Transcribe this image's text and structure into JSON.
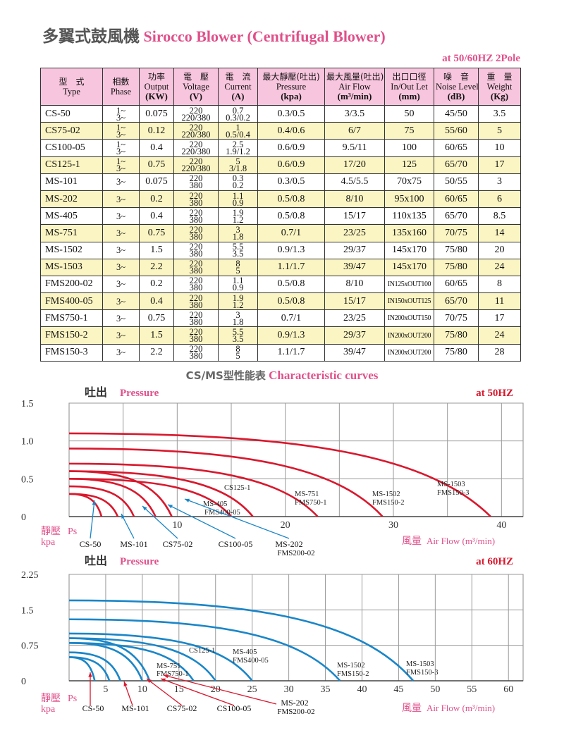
{
  "title": {
    "zh": "多翼式鼓風機",
    "en": "Sirocco Blower (Centrifugal Blower)"
  },
  "subtitle": "at  50/60HZ 2Pole",
  "table": {
    "headers": [
      {
        "zh": "型　式",
        "en": "Type",
        "unit": ""
      },
      {
        "zh": "相數",
        "en": "Phase",
        "unit": ""
      },
      {
        "zh": "功率",
        "en": "Output",
        "unit": "(KW)"
      },
      {
        "zh": "電　壓",
        "en": "Voltage",
        "unit": "(V)"
      },
      {
        "zh": "電　流",
        "en": "Current",
        "unit": "(A)"
      },
      {
        "zh": "最大靜壓(吐出)",
        "en": "Pressure",
        "unit": "(kpa)"
      },
      {
        "zh": "最大風量(吐出)",
        "en": "Air Flow",
        "unit": "(m³/min)"
      },
      {
        "zh": "出口口徑",
        "en": "In/Out Let",
        "unit": "(mm)"
      },
      {
        "zh": "噪　音",
        "en": "Noise Level",
        "unit": "(dB)"
      },
      {
        "zh": "重　量",
        "en": "Weight",
        "unit": "(Kg)"
      }
    ],
    "rows": [
      {
        "type": "CS-50",
        "phase": [
          "1~",
          "3~"
        ],
        "output": "0.075",
        "voltage": [
          "220",
          "220/380"
        ],
        "current": [
          "0.7",
          "0.3/0.2"
        ],
        "pressure": "0.3/0.5",
        "flow": "3/3.5",
        "outlet": "50",
        "noise": "45/50",
        "weight": "3.5"
      },
      {
        "type": "CS75-02",
        "phase": [
          "1~",
          "3~"
        ],
        "output": "0.12",
        "voltage": [
          "220",
          "220/380"
        ],
        "current": [
          "1",
          "0.5/0.4"
        ],
        "pressure": "0.4/0.6",
        "flow": "6/7",
        "outlet": "75",
        "noise": "55/60",
        "weight": "5"
      },
      {
        "type": "CS100-05",
        "phase": [
          "1~",
          "3~"
        ],
        "output": "0.4",
        "voltage": [
          "220",
          "220/380"
        ],
        "current": [
          "2.5",
          "1.9/1.2"
        ],
        "pressure": "0.6/0.9",
        "flow": "9.5/11",
        "outlet": "100",
        "noise": "60/65",
        "weight": "10"
      },
      {
        "type": "CS125-1",
        "phase": [
          "1~",
          "3~"
        ],
        "output": "0.75",
        "voltage": [
          "220",
          "220/380"
        ],
        "current": [
          "5",
          "3/1.8"
        ],
        "pressure": "0.6/0.9",
        "flow": "17/20",
        "outlet": "125",
        "noise": "65/70",
        "weight": "17"
      },
      {
        "type": "MS-101",
        "phase": [
          "3~"
        ],
        "output": "0.075",
        "voltage": [
          "220",
          "380"
        ],
        "current": [
          "0.3",
          "0.2"
        ],
        "pressure": "0.3/0.5",
        "flow": "4.5/5.5",
        "outlet": "70x75",
        "noise": "50/55",
        "weight": "3"
      },
      {
        "type": "MS-202",
        "phase": [
          "3~"
        ],
        "output": "0.2",
        "voltage": [
          "220",
          "380"
        ],
        "current": [
          "1.1",
          "0.9"
        ],
        "pressure": "0.5/0.8",
        "flow": "8/10",
        "outlet": "95x100",
        "noise": "60/65",
        "weight": "6"
      },
      {
        "type": "MS-405",
        "phase": [
          "3~"
        ],
        "output": "0.4",
        "voltage": [
          "220",
          "380"
        ],
        "current": [
          "1.9",
          "1.2"
        ],
        "pressure": "0.5/0.8",
        "flow": "15/17",
        "outlet": "110x135",
        "noise": "65/70",
        "weight": "8.5"
      },
      {
        "type": "MS-751",
        "phase": [
          "3~"
        ],
        "output": "0.75",
        "voltage": [
          "220",
          "380"
        ],
        "current": [
          "3",
          "1.8"
        ],
        "pressure": "0.7/1",
        "flow": "23/25",
        "outlet": "135x160",
        "noise": "70/75",
        "weight": "14"
      },
      {
        "type": "MS-1502",
        "phase": [
          "3~"
        ],
        "output": "1.5",
        "voltage": [
          "220",
          "380"
        ],
        "current": [
          "5.5",
          "3.5"
        ],
        "pressure": "0.9/1.3",
        "flow": "29/37",
        "outlet": "145x170",
        "noise": "75/80",
        "weight": "20"
      },
      {
        "type": "MS-1503",
        "phase": [
          "3~"
        ],
        "output": "2.2",
        "voltage": [
          "220",
          "380"
        ],
        "current": [
          "8",
          "5"
        ],
        "pressure": "1.1/1.7",
        "flow": "39/47",
        "outlet": "145x170",
        "noise": "75/80",
        "weight": "24"
      },
      {
        "type": "FMS200-02",
        "phase": [
          "3~"
        ],
        "output": "0.2",
        "voltage": [
          "220",
          "380"
        ],
        "current": [
          "1.1",
          "0.9"
        ],
        "pressure": "0.5/0.8",
        "flow": "8/10",
        "outlet": "IN125xOUT100",
        "noise": "60/65",
        "weight": "8"
      },
      {
        "type": "FMS400-05",
        "phase": [
          "3~"
        ],
        "output": "0.4",
        "voltage": [
          "220",
          "380"
        ],
        "current": [
          "1.9",
          "1.2"
        ],
        "pressure": "0.5/0.8",
        "flow": "15/17",
        "outlet": "IN150xOUT125",
        "noise": "65/70",
        "weight": "11"
      },
      {
        "type": "FMS750-1",
        "phase": [
          "3~"
        ],
        "output": "0.75",
        "voltage": [
          "220",
          "380"
        ],
        "current": [
          "3",
          "1.8"
        ],
        "pressure": "0.7/1",
        "flow": "23/25",
        "outlet": "IN200xOUT150",
        "noise": "70/75",
        "weight": "17"
      },
      {
        "type": "FMS150-2",
        "phase": [
          "3~"
        ],
        "output": "1.5",
        "voltage": [
          "220",
          "380"
        ],
        "current": [
          "5.5",
          "3.5"
        ],
        "pressure": "0.9/1.3",
        "flow": "29/37",
        "outlet": "IN200xOUT200",
        "noise": "75/80",
        "weight": "24"
      },
      {
        "type": "FMS150-3",
        "phase": [
          "3~"
        ],
        "output": "2.2",
        "voltage": [
          "220",
          "380"
        ],
        "current": [
          "8",
          "5"
        ],
        "pressure": "1.1/1.7",
        "flow": "39/47",
        "outlet": "IN200xOUT200",
        "noise": "75/80",
        "weight": "28"
      }
    ]
  },
  "section_title": {
    "zh": "CS/MS型性能表",
    "en": "Characteristic curves"
  },
  "chart_data": [
    {
      "type": "line",
      "title": "at  50HZ",
      "ylabel_top": {
        "zh": "吐出",
        "en": "Pressure"
      },
      "ylabel_bottom": {
        "zh": "靜壓",
        "en": "Ps",
        "unit": "kpa"
      },
      "xlabel": {
        "zh": "風量",
        "en": "Air Flow (m³/min)"
      },
      "xlim": [
        0,
        42
      ],
      "ylim": [
        0,
        1.5
      ],
      "xticks": [
        "10",
        "20",
        "30",
        "40"
      ],
      "xtick_values": [
        10,
        20,
        30,
        40
      ],
      "yticks": [
        "1.5",
        "1.0",
        "0.5",
        "0"
      ],
      "ytick_values": [
        1.5,
        1.0,
        0.5,
        0
      ],
      "grid": true,
      "line_color": "#d9182d",
      "series": [
        {
          "pressure": 0.3,
          "flow": 3
        },
        {
          "pressure": 0.3,
          "flow": 4.5
        },
        {
          "pressure": 0.4,
          "flow": 6
        },
        {
          "pressure": 0.5,
          "flow": 8
        },
        {
          "pressure": 0.6,
          "flow": 9.5
        },
        {
          "pressure": 0.5,
          "flow": 15
        },
        {
          "pressure": 0.6,
          "flow": 17
        },
        {
          "pressure": 0.7,
          "flow": 23
        },
        {
          "pressure": 0.9,
          "flow": 29
        },
        {
          "pressure": 1.1,
          "flow": 39
        }
      ],
      "curve_labels": [
        "CS125-1",
        "MS-405",
        "FMS400-05",
        "MS-751",
        "FMS750-1",
        "MS-1502",
        "FMS150-2",
        "MS-1503",
        "FMS150-3"
      ],
      "callouts": [
        "CS-50",
        "MS-101",
        "CS75-02",
        "CS100-05",
        "MS-202",
        "FMS200-02"
      ]
    },
    {
      "type": "line",
      "title": "at  60HZ",
      "ylabel_top": {
        "zh": "吐出",
        "en": "Pressure"
      },
      "ylabel_bottom": {
        "zh": "靜壓",
        "en": "Ps",
        "unit": "kpa"
      },
      "xlabel": {
        "zh": "風量",
        "en": "Air Flow (m³/min)"
      },
      "xlim": [
        0,
        62
      ],
      "ylim": [
        0,
        2.25
      ],
      "xticks": [
        "5",
        "10",
        "15",
        "20",
        "25",
        "30",
        "35",
        "40",
        "45",
        "50",
        "55",
        "60"
      ],
      "xtick_values": [
        5,
        10,
        15,
        20,
        25,
        30,
        35,
        40,
        45,
        50,
        55,
        60
      ],
      "yticks": [
        "2.25",
        "1.5",
        "0.75",
        "0"
      ],
      "ytick_values": [
        2.25,
        1.5,
        0.75,
        0
      ],
      "grid": true,
      "line_color": "#1a86c8",
      "series": [
        {
          "pressure": 0.5,
          "flow": 3.5
        },
        {
          "pressure": 0.5,
          "flow": 5.5
        },
        {
          "pressure": 0.6,
          "flow": 7
        },
        {
          "pressure": 0.8,
          "flow": 10
        },
        {
          "pressure": 0.9,
          "flow": 11
        },
        {
          "pressure": 0.8,
          "flow": 17
        },
        {
          "pressure": 0.9,
          "flow": 20
        },
        {
          "pressure": 1.0,
          "flow": 25
        },
        {
          "pressure": 1.3,
          "flow": 37
        },
        {
          "pressure": 1.7,
          "flow": 47
        }
      ],
      "curve_labels": [
        "CS125-1",
        "MS-405",
        "FMS400-05",
        "MS-751",
        "FMS750-1",
        "MS-1502",
        "FMS150-2",
        "MS-1503",
        "FMS150-3"
      ],
      "callouts": [
        "CS-50",
        "MS-101",
        "CS75-02",
        "CS100-05",
        "MS-202",
        "FMS200-02"
      ]
    }
  ]
}
